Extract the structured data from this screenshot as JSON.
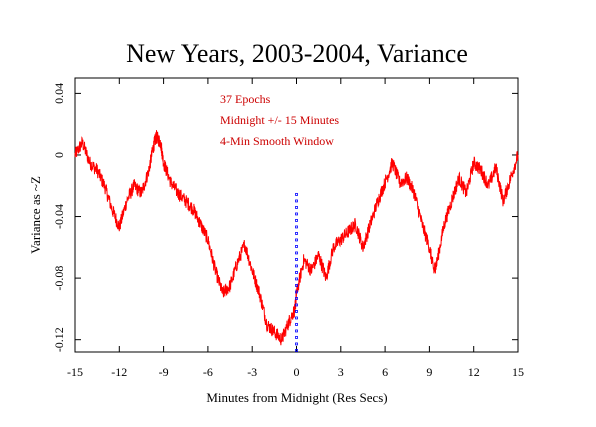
{
  "chart_data": {
    "type": "line",
    "title": "New Years, 2003-2004, Variance",
    "xlabel": "Minutes from Midnight (Res Secs)",
    "ylabel": "Variance as ~Z",
    "xlim": [
      -15,
      15
    ],
    "ylim": [
      -0.128,
      0.05
    ],
    "xticks": [
      -15,
      -12,
      -9,
      -6,
      -3,
      0,
      3,
      6,
      9,
      12,
      15
    ],
    "xtick_labels": [
      "-15",
      "-12",
      "-9",
      "-6",
      "-3",
      "0",
      "3",
      "6",
      "9",
      "12",
      "15"
    ],
    "yticks": [
      0.04,
      0,
      -0.04,
      -0.08,
      -0.12
    ],
    "ytick_labels": [
      "0.04",
      "0",
      "-0.04",
      "-0.08",
      "-0.12"
    ],
    "annotations": [
      "37 Epochs",
      "Midnight +/- 15 Minutes",
      "4-Min Smooth Window"
    ],
    "grid": false,
    "series": [
      {
        "color": "#ff0000",
        "x": [
          -15,
          -14.5,
          -14,
          -13.5,
          -13,
          -12.5,
          -12,
          -11.5,
          -11,
          -10.5,
          -10,
          -9.7,
          -9.5,
          -9.2,
          -9,
          -8.5,
          -8,
          -7.5,
          -7,
          -6.5,
          -6,
          -5.5,
          -5,
          -4.5,
          -4,
          -3.5,
          -3,
          -2.5,
          -2,
          -1.5,
          -1,
          -0.5,
          -0.1,
          0,
          0.5,
          1,
          1.5,
          2,
          2.5,
          3,
          3.5,
          4,
          4.5,
          5,
          5.5,
          6,
          6.5,
          7,
          7.5,
          8,
          8.5,
          9,
          9.3,
          9.5,
          10,
          10.5,
          11,
          11.5,
          12,
          12.5,
          13,
          13.5,
          14,
          14.5,
          15
        ],
        "y": [
          0.0,
          0.008,
          -0.005,
          -0.01,
          -0.02,
          -0.035,
          -0.047,
          -0.03,
          -0.02,
          -0.025,
          -0.01,
          0.005,
          0.012,
          0.008,
          -0.005,
          -0.018,
          -0.025,
          -0.03,
          -0.035,
          -0.045,
          -0.055,
          -0.075,
          -0.09,
          -0.085,
          -0.07,
          -0.058,
          -0.075,
          -0.09,
          -0.11,
          -0.115,
          -0.12,
          -0.108,
          -0.1,
          -0.09,
          -0.068,
          -0.075,
          -0.065,
          -0.08,
          -0.06,
          -0.055,
          -0.05,
          -0.045,
          -0.06,
          -0.045,
          -0.03,
          -0.018,
          -0.005,
          -0.018,
          -0.015,
          -0.025,
          -0.045,
          -0.06,
          -0.075,
          -0.07,
          -0.045,
          -0.03,
          -0.015,
          -0.025,
          -0.005,
          -0.01,
          -0.02,
          -0.008,
          -0.03,
          -0.015,
          0.0
        ]
      },
      {
        "color": "#0000ff",
        "style": "dotted",
        "x": [
          0,
          0
        ],
        "y": [
          -0.128,
          -0.025
        ]
      }
    ]
  }
}
